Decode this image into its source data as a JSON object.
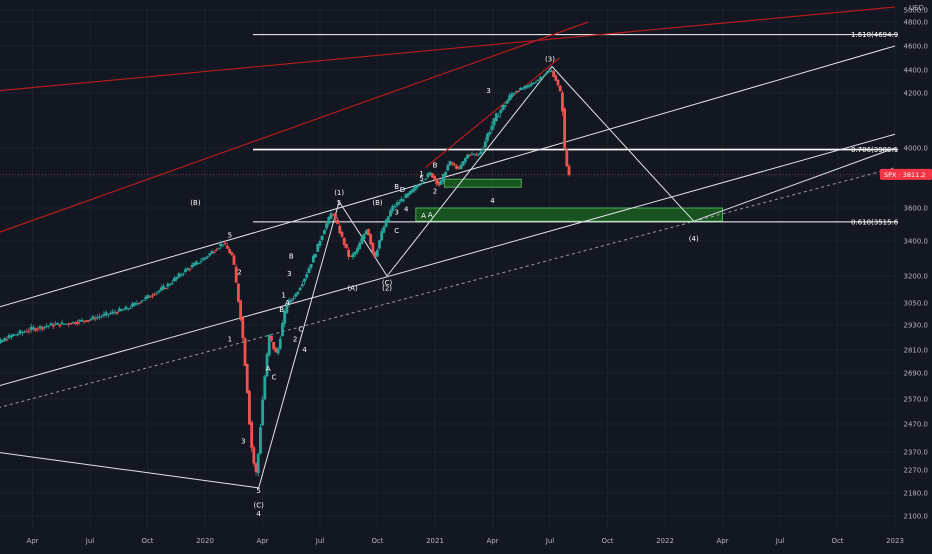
{
  "chart_data": {
    "type": "candlestick",
    "instrument": "SPX",
    "currency_label": "USD",
    "last_price": 3811.2,
    "colors": {
      "background": "#131722",
      "up": "#26a69a",
      "down": "#ef5350",
      "wave_line": "#e0e3eb",
      "trend_red": "#b71c1c",
      "fib_line": "#ffffff",
      "zone_fill": "#1b5e20",
      "zone_border": "#4caf50",
      "price_badge": "#f23645"
    },
    "y_axis": {
      "min": 2100,
      "max": 5000,
      "ticks": [
        2100,
        2180,
        2270,
        2370,
        2470,
        2570,
        2690,
        2810,
        2930,
        3050,
        3200,
        3400,
        3600,
        3800,
        4000,
        4200,
        4400,
        4600,
        4800,
        5000
      ],
      "tick_labels": [
        "2100.0",
        "2180.0",
        "2270.0",
        "2370.0",
        "2470.0",
        "2570.0",
        "2690.0",
        "2810.0",
        "2930.0",
        "3050.0",
        "3200.0",
        "3400.0",
        "3600.0",
        "3800.0",
        "4000.0",
        "4200.0",
        "4400.0",
        "4600.0",
        "4800.0",
        "5000.0"
      ]
    },
    "x_axis": {
      "labels": [
        "Apr",
        "Jul",
        "Oct",
        "2020",
        "Apr",
        "Jul",
        "Oct",
        "2021",
        "Apr",
        "Jul",
        "Oct",
        "2022",
        "Apr",
        "Jul",
        "Oct",
        "2023"
      ],
      "label_months": [
        3,
        6,
        9,
        12,
        15,
        18,
        21,
        24,
        27,
        30,
        33,
        36,
        39,
        42,
        45,
        48
      ]
    },
    "price_path": [
      [
        0,
        2780
      ],
      [
        1,
        2830
      ],
      [
        2,
        2880
      ],
      [
        3,
        2910
      ],
      [
        4,
        2930
      ],
      [
        5,
        2940
      ],
      [
        6,
        2960
      ],
      [
        7,
        2990
      ],
      [
        8,
        3020
      ],
      [
        9,
        3080
      ],
      [
        10,
        3140
      ],
      [
        11,
        3230
      ],
      [
        12,
        3300
      ],
      [
        13,
        3390
      ],
      [
        13.5,
        3310
      ],
      [
        14,
        2900
      ],
      [
        14.4,
        2450
      ],
      [
        14.7,
        2240
      ],
      [
        15.1,
        2600
      ],
      [
        15.4,
        2880
      ],
      [
        15.8,
        2780
      ],
      [
        16.3,
        3040
      ],
      [
        16.8,
        3100
      ],
      [
        17.3,
        3200
      ],
      [
        17.8,
        3330
      ],
      [
        18.3,
        3480
      ],
      [
        18.7,
        3580
      ],
      [
        19.2,
        3420
      ],
      [
        19.6,
        3300
      ],
      [
        20.0,
        3350
      ],
      [
        20.5,
        3480
      ],
      [
        20.9,
        3300
      ],
      [
        21.3,
        3460
      ],
      [
        21.8,
        3600
      ],
      [
        22.3,
        3650
      ],
      [
        22.8,
        3700
      ],
      [
        23.3,
        3760
      ],
      [
        23.8,
        3820
      ],
      [
        24.3,
        3740
      ],
      [
        24.8,
        3900
      ],
      [
        25.3,
        3850
      ],
      [
        25.8,
        3960
      ],
      [
        26.3,
        3950
      ],
      [
        26.8,
        4050
      ],
      [
        27.3,
        4120
      ],
      [
        27.8,
        4170
      ],
      [
        28.3,
        4220
      ],
      [
        28.8,
        4250
      ],
      [
        29.3,
        4300
      ],
      [
        29.8,
        4370
      ],
      [
        30.1,
        4400
      ],
      [
        30.4,
        4300
      ],
      [
        30.7,
        4150
      ],
      [
        30.85,
        3950
      ],
      [
        31.0,
        3810
      ]
    ],
    "fib_levels": [
      {
        "ratio_label": "1.618(4694.9)",
        "price": 4694.9
      },
      {
        "ratio_label": "0.786(3989.1)",
        "price": 3989.1
      },
      {
        "ratio_label": "0.618(3515.6)",
        "price": 3515.6
      }
    ],
    "zones": [
      {
        "label": "A",
        "from_month": 23.0,
        "to_month": 39.0,
        "low": 3520,
        "high": 3600
      },
      {
        "label": "",
        "from_month": 24.5,
        "to_month": 28.5,
        "low": 3730,
        "high": 3780
      }
    ],
    "wave_labels": [
      {
        "text": "(B)",
        "month": 11.5,
        "price": 3620
      },
      {
        "text": "5",
        "month": 13.3,
        "price": 3420
      },
      {
        "text": "2",
        "month": 13.8,
        "price": 3210
      },
      {
        "text": "1",
        "month": 13.3,
        "price": 2850
      },
      {
        "text": "3",
        "month": 14.0,
        "price": 2400
      },
      {
        "text": "5",
        "month": 14.8,
        "price": 2180
      },
      {
        "text": "(C)",
        "month": 14.8,
        "price": 2130
      },
      {
        "text": "4",
        "month": 14.8,
        "price": 2100
      },
      {
        "text": "A",
        "month": 15.3,
        "price": 2700
      },
      {
        "text": "C",
        "month": 15.6,
        "price": 2660
      },
      {
        "text": "B",
        "month": 16.0,
        "price": 3000
      },
      {
        "text": "A",
        "month": 16.3,
        "price": 3040
      },
      {
        "text": "3",
        "month": 16.4,
        "price": 3200
      },
      {
        "text": "B",
        "month": 16.5,
        "price": 3300
      },
      {
        "text": "1",
        "month": 16.1,
        "price": 3080
      },
      {
        "text": "2",
        "month": 16.7,
        "price": 2850
      },
      {
        "text": "C",
        "month": 17.0,
        "price": 2900
      },
      {
        "text": "4",
        "month": 17.2,
        "price": 2800
      },
      {
        "text": "(1)",
        "month": 19.0,
        "price": 3680
      },
      {
        "text": "5",
        "month": 19.0,
        "price": 3620
      },
      {
        "text": "(B)",
        "month": 21.0,
        "price": 3620
      },
      {
        "text": "(A)",
        "month": 19.7,
        "price": 3120
      },
      {
        "text": "(C)",
        "month": 21.5,
        "price": 3150
      },
      {
        "text": "(2)",
        "month": 21.5,
        "price": 3120
      },
      {
        "text": "3",
        "month": 22.0,
        "price": 3560
      },
      {
        "text": "B",
        "month": 22.0,
        "price": 3720
      },
      {
        "text": "D",
        "month": 22.3,
        "price": 3700
      },
      {
        "text": "4",
        "month": 22.5,
        "price": 3580
      },
      {
        "text": "C",
        "month": 22.0,
        "price": 3450
      },
      {
        "text": "A",
        "month": 23.4,
        "price": 3540
      },
      {
        "text": "1",
        "month": 23.3,
        "price": 3800
      },
      {
        "text": "5",
        "month": 23.3,
        "price": 3770
      },
      {
        "text": "B",
        "month": 24.0,
        "price": 3860
      },
      {
        "text": "2",
        "month": 24.0,
        "price": 3690
      },
      {
        "text": "3",
        "month": 26.8,
        "price": 4200
      },
      {
        "text": "4",
        "month": 27.0,
        "price": 3630
      },
      {
        "text": "(3)",
        "month": 30.0,
        "price": 4470
      },
      {
        "text": "(4)",
        "month": 37.5,
        "price": 3400
      }
    ],
    "trend_lines_white": [
      [
        [
          0,
          2990
        ],
        [
          48,
          4600
        ]
      ],
      [
        [
          0,
          2600
        ],
        [
          48,
          4050
        ]
      ],
      [
        [
          0,
          2380
        ],
        [
          14.8,
          2200
        ]
      ],
      [
        [
          14.8,
          2200
        ],
        [
          19.0,
          3640
        ]
      ],
      [
        [
          19.0,
          3640
        ],
        [
          21.5,
          3200
        ]
      ],
      [
        [
          21.5,
          3200
        ],
        [
          30.1,
          4430
        ]
      ],
      [
        [
          30.1,
          4430
        ],
        [
          37.5,
          3520
        ]
      ],
      [
        [
          37.5,
          3520
        ],
        [
          48,
          4000
        ]
      ]
    ],
    "trend_lines_dashed": [
      [
        [
          0,
          2510
        ],
        [
          48,
          3860
        ]
      ]
    ],
    "trend_lines_red": [
      [
        [
          0,
          3400
        ],
        [
          32,
          4800
        ]
      ],
      [
        [
          0,
          4200
        ],
        [
          48,
          5050
        ]
      ],
      [
        [
          23.5,
          3860
        ],
        [
          30.5,
          4500
        ]
      ]
    ],
    "month_range": [
      0,
      48
    ]
  }
}
